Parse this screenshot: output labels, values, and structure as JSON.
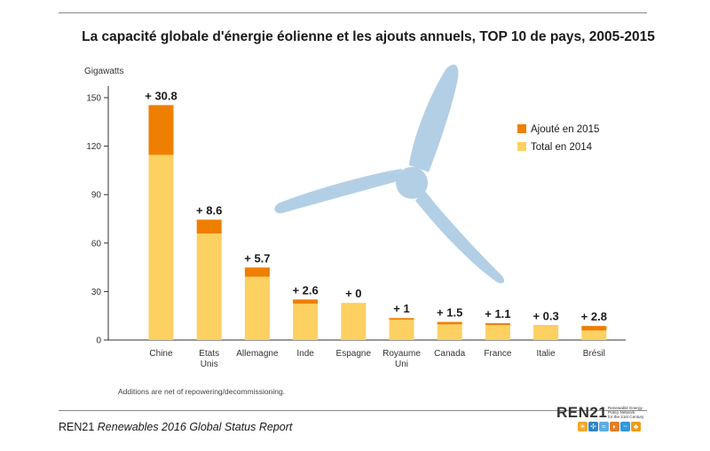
{
  "title": "La capacité globale d'énergie éolienne et les ajouts annuels, TOP 10 de pays, 2005-2015",
  "note": "Additions are net of repowering/decommissioning.",
  "source": {
    "org": "REN21",
    "report": "Renewables 2016 Global Status Report"
  },
  "logo": {
    "name": "REN21",
    "tagline": [
      "Renewable Energy",
      "Policy Network",
      "for the 21st Century"
    ]
  },
  "colors": {
    "added": "#EE7F00",
    "base": "#FDD062",
    "turbine": "#B3CFE6",
    "axis": "#333333"
  },
  "chart_data": {
    "type": "bar",
    "stacked": true,
    "ylabel": "Gigawatts",
    "ylim": [
      0,
      150
    ],
    "yticks": [
      0,
      30,
      60,
      90,
      120,
      150
    ],
    "categories": [
      "Chine",
      "Etats Unis",
      "Allemagne",
      "Inde",
      "Espagne",
      "Royaume Uni",
      "Canada",
      "France",
      "Italie",
      "Brésil"
    ],
    "category_lines": [
      [
        "Chine"
      ],
      [
        "Etats",
        "Unis"
      ],
      [
        "Allemagne"
      ],
      [
        "Inde"
      ],
      [
        "Espagne"
      ],
      [
        "Royaume",
        "Uni"
      ],
      [
        "Canada"
      ],
      [
        "France"
      ],
      [
        "Italie"
      ],
      [
        "Brésil"
      ]
    ],
    "series": [
      {
        "name": "Total en 2014",
        "color": "#FDD062",
        "values": [
          114.6,
          65.9,
          39.2,
          22.5,
          23.0,
          12.6,
          9.7,
          9.3,
          8.7,
          5.9
        ]
      },
      {
        "name": "Ajouté en 2015",
        "color": "#EE7F00",
        "values": [
          30.8,
          8.6,
          5.7,
          2.6,
          0,
          1,
          1.5,
          1.1,
          0.3,
          2.8
        ]
      }
    ],
    "data_labels": [
      "+ 30.8",
      "+ 8.6",
      "+ 5.7",
      "+ 2.6",
      "+ 0",
      "+ 1",
      "+ 1.5",
      "+ 1.1",
      "+ 0.3",
      "+ 2.8"
    ],
    "legend": {
      "placement": "right",
      "items": [
        "Ajouté en 2015",
        "Total en 2014"
      ]
    }
  }
}
